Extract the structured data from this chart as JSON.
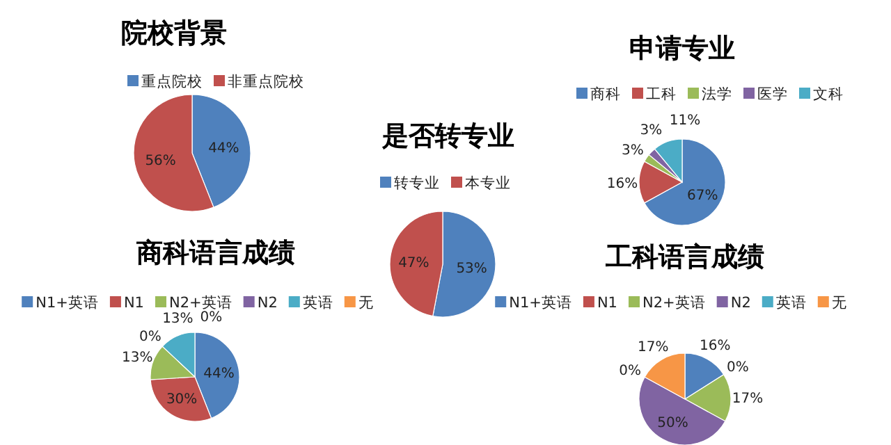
{
  "chart_data": [
    {
      "type": "pie",
      "title": "院校背景",
      "categories": [
        "重点院校",
        "非重点院校"
      ],
      "values": [
        44,
        56
      ],
      "value_labels": [
        "44%",
        "56%"
      ],
      "colors": [
        "#4f81bd",
        "#c0504d"
      ],
      "legend": "top"
    },
    {
      "type": "pie",
      "title": "申请专业",
      "categories": [
        "商科",
        "工科",
        "法学",
        "医学",
        "文科"
      ],
      "values": [
        67,
        16,
        3,
        3,
        11
      ],
      "value_labels": [
        "67%",
        "16%",
        "3%",
        "3%",
        "11%"
      ],
      "colors": [
        "#4f81bd",
        "#c0504d",
        "#9bbb59",
        "#8064a2",
        "#4bacc6"
      ],
      "legend": "top"
    },
    {
      "type": "pie",
      "title": "是否转专业",
      "categories": [
        "转专业",
        "本专业"
      ],
      "values": [
        53,
        47
      ],
      "value_labels": [
        "53%",
        "47%"
      ],
      "colors": [
        "#4f81bd",
        "#c0504d"
      ],
      "legend": "top"
    },
    {
      "type": "pie",
      "title": "商科语言成绩",
      "categories": [
        "N1+英语",
        "N1",
        "N2+英语",
        "N2",
        "英语",
        "无"
      ],
      "values": [
        44,
        30,
        13,
        0,
        13,
        0
      ],
      "value_labels": [
        "44%",
        "30%",
        "13%",
        "0%",
        "13%",
        "0%"
      ],
      "colors": [
        "#4f81bd",
        "#c0504d",
        "#9bbb59",
        "#8064a2",
        "#4bacc6",
        "#f79646"
      ],
      "legend": "top"
    },
    {
      "type": "pie",
      "title": "工科语言成绩",
      "categories": [
        "N1+英语",
        "N1",
        "N2+英语",
        "N2",
        "英语",
        "无"
      ],
      "values": [
        16,
        0,
        17,
        50,
        0,
        17
      ],
      "value_labels": [
        "16%",
        "0%",
        "17%",
        "50%",
        "0%",
        "17%"
      ],
      "colors": [
        "#4f81bd",
        "#c0504d",
        "#9bbb59",
        "#8064a2",
        "#4bacc6",
        "#f79646"
      ],
      "legend": "top"
    }
  ]
}
